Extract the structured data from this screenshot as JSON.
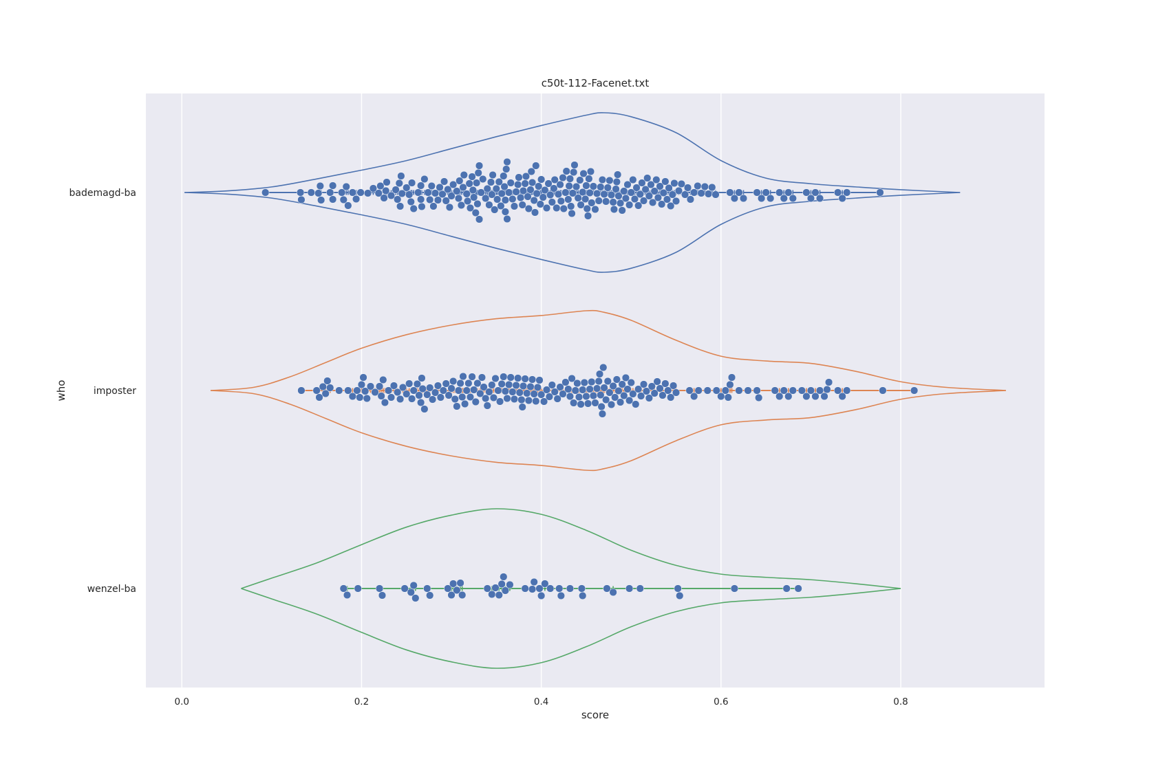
{
  "chart_data": {
    "type": "violin-swarm",
    "orientation": "horizontal",
    "title": "c50t-112-Facenet.txt",
    "xlabel": "score",
    "ylabel": "who",
    "xlim": [
      -0.04,
      0.96
    ],
    "xticks": [
      0.0,
      0.2,
      0.4,
      0.6,
      0.8
    ],
    "xtick_labels": [
      "0.0",
      "0.2",
      "0.4",
      "0.6",
      "0.8"
    ],
    "grid": true,
    "background": "#eaeaf2",
    "point_color": "#4c72b0",
    "categories": [
      "bademagd-ba",
      "imposter",
      "wenzel-ba"
    ],
    "series": [
      {
        "category": "bademagd-ba",
        "color": "#4c72b0",
        "violin_range": [
          0.003,
          0.866
        ],
        "density": [
          [
            0.003,
            0.0
          ],
          [
            0.05,
            0.02
          ],
          [
            0.1,
            0.07
          ],
          [
            0.15,
            0.17
          ],
          [
            0.2,
            0.28
          ],
          [
            0.25,
            0.4
          ],
          [
            0.3,
            0.55
          ],
          [
            0.35,
            0.7
          ],
          [
            0.4,
            0.84
          ],
          [
            0.45,
            0.97
          ],
          [
            0.47,
            1.0
          ],
          [
            0.5,
            0.95
          ],
          [
            0.55,
            0.75
          ],
          [
            0.6,
            0.4
          ],
          [
            0.65,
            0.18
          ],
          [
            0.7,
            0.11
          ],
          [
            0.75,
            0.07
          ],
          [
            0.8,
            0.035
          ],
          [
            0.866,
            0.0
          ]
        ],
        "points": [
          0.093,
          0.132,
          0.133,
          0.144,
          0.152,
          0.154,
          0.155,
          0.165,
          0.168,
          0.168,
          0.178,
          0.18,
          0.183,
          0.185,
          0.19,
          0.194,
          0.199,
          0.207,
          0.213,
          0.219,
          0.221,
          0.225,
          0.227,
          0.228,
          0.233,
          0.238,
          0.24,
          0.242,
          0.243,
          0.244,
          0.245,
          0.25,
          0.253,
          0.255,
          0.256,
          0.258,
          0.263,
          0.266,
          0.266,
          0.267,
          0.27,
          0.274,
          0.276,
          0.278,
          0.28,
          0.282,
          0.285,
          0.287,
          0.29,
          0.292,
          0.294,
          0.296,
          0.298,
          0.3,
          0.302,
          0.306,
          0.308,
          0.309,
          0.311,
          0.313,
          0.314,
          0.317,
          0.318,
          0.32,
          0.321,
          0.323,
          0.324,
          0.325,
          0.327,
          0.328,
          0.329,
          0.33,
          0.331,
          0.331,
          0.333,
          0.335,
          0.338,
          0.34,
          0.342,
          0.344,
          0.345,
          0.346,
          0.348,
          0.35,
          0.351,
          0.353,
          0.355,
          0.356,
          0.358,
          0.359,
          0.36,
          0.36,
          0.361,
          0.362,
          0.362,
          0.364,
          0.366,
          0.368,
          0.37,
          0.372,
          0.374,
          0.375,
          0.377,
          0.379,
          0.38,
          0.382,
          0.383,
          0.385,
          0.386,
          0.388,
          0.389,
          0.39,
          0.392,
          0.393,
          0.394,
          0.395,
          0.397,
          0.399,
          0.4,
          0.402,
          0.404,
          0.406,
          0.408,
          0.41,
          0.412,
          0.414,
          0.415,
          0.417,
          0.419,
          0.421,
          0.422,
          0.424,
          0.425,
          0.427,
          0.428,
          0.43,
          0.431,
          0.432,
          0.433,
          0.434,
          0.435,
          0.436,
          0.437,
          0.439,
          0.441,
          0.443,
          0.444,
          0.446,
          0.447,
          0.449,
          0.45,
          0.451,
          0.452,
          0.453,
          0.454,
          0.455,
          0.456,
          0.458,
          0.46,
          0.462,
          0.464,
          0.466,
          0.468,
          0.47,
          0.472,
          0.474,
          0.476,
          0.478,
          0.48,
          0.481,
          0.483,
          0.484,
          0.485,
          0.486,
          0.488,
          0.49,
          0.492,
          0.494,
          0.496,
          0.498,
          0.5,
          0.502,
          0.504,
          0.506,
          0.508,
          0.51,
          0.512,
          0.514,
          0.516,
          0.518,
          0.52,
          0.522,
          0.524,
          0.526,
          0.528,
          0.53,
          0.532,
          0.534,
          0.536,
          0.538,
          0.54,
          0.542,
          0.544,
          0.546,
          0.548,
          0.55,
          0.553,
          0.556,
          0.56,
          0.563,
          0.566,
          0.57,
          0.574,
          0.578,
          0.582,
          0.586,
          0.59,
          0.594,
          0.61,
          0.615,
          0.62,
          0.625,
          0.64,
          0.645,
          0.65,
          0.655,
          0.665,
          0.67,
          0.675,
          0.68,
          0.695,
          0.7,
          0.705,
          0.71,
          0.73,
          0.735,
          0.74,
          0.777
        ]
      },
      {
        "category": "imposter",
        "color": "#dd8452",
        "violin_range": [
          0.032,
          0.917
        ],
        "density": [
          [
            0.032,
            0.0
          ],
          [
            0.08,
            0.04
          ],
          [
            0.12,
            0.17
          ],
          [
            0.16,
            0.35
          ],
          [
            0.2,
            0.53
          ],
          [
            0.25,
            0.7
          ],
          [
            0.3,
            0.82
          ],
          [
            0.35,
            0.9
          ],
          [
            0.4,
            0.94
          ],
          [
            0.45,
            1.0
          ],
          [
            0.47,
            0.98
          ],
          [
            0.5,
            0.88
          ],
          [
            0.55,
            0.63
          ],
          [
            0.6,
            0.43
          ],
          [
            0.65,
            0.37
          ],
          [
            0.7,
            0.34
          ],
          [
            0.75,
            0.24
          ],
          [
            0.8,
            0.11
          ],
          [
            0.85,
            0.04
          ],
          [
            0.917,
            0.0
          ]
        ],
        "points": [
          0.133,
          0.15,
          0.153,
          0.157,
          0.16,
          0.162,
          0.165,
          0.175,
          0.185,
          0.19,
          0.195,
          0.198,
          0.2,
          0.202,
          0.204,
          0.206,
          0.21,
          0.215,
          0.22,
          0.222,
          0.224,
          0.226,
          0.23,
          0.233,
          0.236,
          0.24,
          0.243,
          0.246,
          0.25,
          0.253,
          0.256,
          0.258,
          0.262,
          0.264,
          0.266,
          0.267,
          0.268,
          0.27,
          0.273,
          0.276,
          0.279,
          0.282,
          0.285,
          0.288,
          0.291,
          0.294,
          0.297,
          0.3,
          0.302,
          0.304,
          0.306,
          0.308,
          0.31,
          0.312,
          0.313,
          0.315,
          0.317,
          0.319,
          0.321,
          0.323,
          0.325,
          0.327,
          0.329,
          0.332,
          0.334,
          0.336,
          0.338,
          0.34,
          0.342,
          0.345,
          0.347,
          0.349,
          0.352,
          0.354,
          0.356,
          0.358,
          0.36,
          0.362,
          0.364,
          0.366,
          0.368,
          0.37,
          0.372,
          0.374,
          0.376,
          0.378,
          0.379,
          0.38,
          0.382,
          0.384,
          0.386,
          0.388,
          0.39,
          0.392,
          0.394,
          0.396,
          0.398,
          0.4,
          0.403,
          0.406,
          0.409,
          0.412,
          0.415,
          0.418,
          0.421,
          0.424,
          0.427,
          0.43,
          0.432,
          0.434,
          0.436,
          0.438,
          0.44,
          0.442,
          0.444,
          0.446,
          0.448,
          0.45,
          0.452,
          0.454,
          0.456,
          0.458,
          0.46,
          0.462,
          0.464,
          0.465,
          0.466,
          0.467,
          0.468,
          0.469,
          0.47,
          0.472,
          0.474,
          0.476,
          0.478,
          0.48,
          0.482,
          0.484,
          0.486,
          0.488,
          0.49,
          0.492,
          0.494,
          0.496,
          0.498,
          0.5,
          0.502,
          0.505,
          0.508,
          0.511,
          0.514,
          0.517,
          0.52,
          0.523,
          0.526,
          0.529,
          0.532,
          0.535,
          0.538,
          0.541,
          0.544,
          0.547,
          0.55,
          0.565,
          0.57,
          0.575,
          0.585,
          0.595,
          0.6,
          0.605,
          0.608,
          0.61,
          0.612,
          0.62,
          0.63,
          0.64,
          0.642,
          0.66,
          0.665,
          0.67,
          0.675,
          0.68,
          0.69,
          0.695,
          0.7,
          0.705,
          0.71,
          0.715,
          0.718,
          0.72,
          0.73,
          0.735,
          0.74,
          0.78,
          0.815
        ]
      },
      {
        "category": "wenzel-ba",
        "color": "#55a868",
        "violin_range": [
          0.066,
          0.8
        ],
        "density": [
          [
            0.066,
            0.0
          ],
          [
            0.1,
            0.13
          ],
          [
            0.15,
            0.32
          ],
          [
            0.2,
            0.55
          ],
          [
            0.25,
            0.77
          ],
          [
            0.3,
            0.92
          ],
          [
            0.35,
            1.0
          ],
          [
            0.4,
            0.93
          ],
          [
            0.45,
            0.73
          ],
          [
            0.5,
            0.48
          ],
          [
            0.55,
            0.29
          ],
          [
            0.6,
            0.18
          ],
          [
            0.65,
            0.14
          ],
          [
            0.7,
            0.11
          ],
          [
            0.75,
            0.06
          ],
          [
            0.8,
            0.0
          ]
        ],
        "points": [
          0.18,
          0.184,
          0.196,
          0.22,
          0.223,
          0.248,
          0.255,
          0.258,
          0.26,
          0.273,
          0.276,
          0.296,
          0.3,
          0.302,
          0.306,
          0.31,
          0.312,
          0.34,
          0.345,
          0.349,
          0.353,
          0.356,
          0.358,
          0.36,
          0.365,
          0.382,
          0.39,
          0.392,
          0.398,
          0.4,
          0.404,
          0.41,
          0.42,
          0.422,
          0.432,
          0.445,
          0.446,
          0.473,
          0.48,
          0.498,
          0.51,
          0.552,
          0.554,
          0.615,
          0.673,
          0.686
        ]
      }
    ]
  }
}
